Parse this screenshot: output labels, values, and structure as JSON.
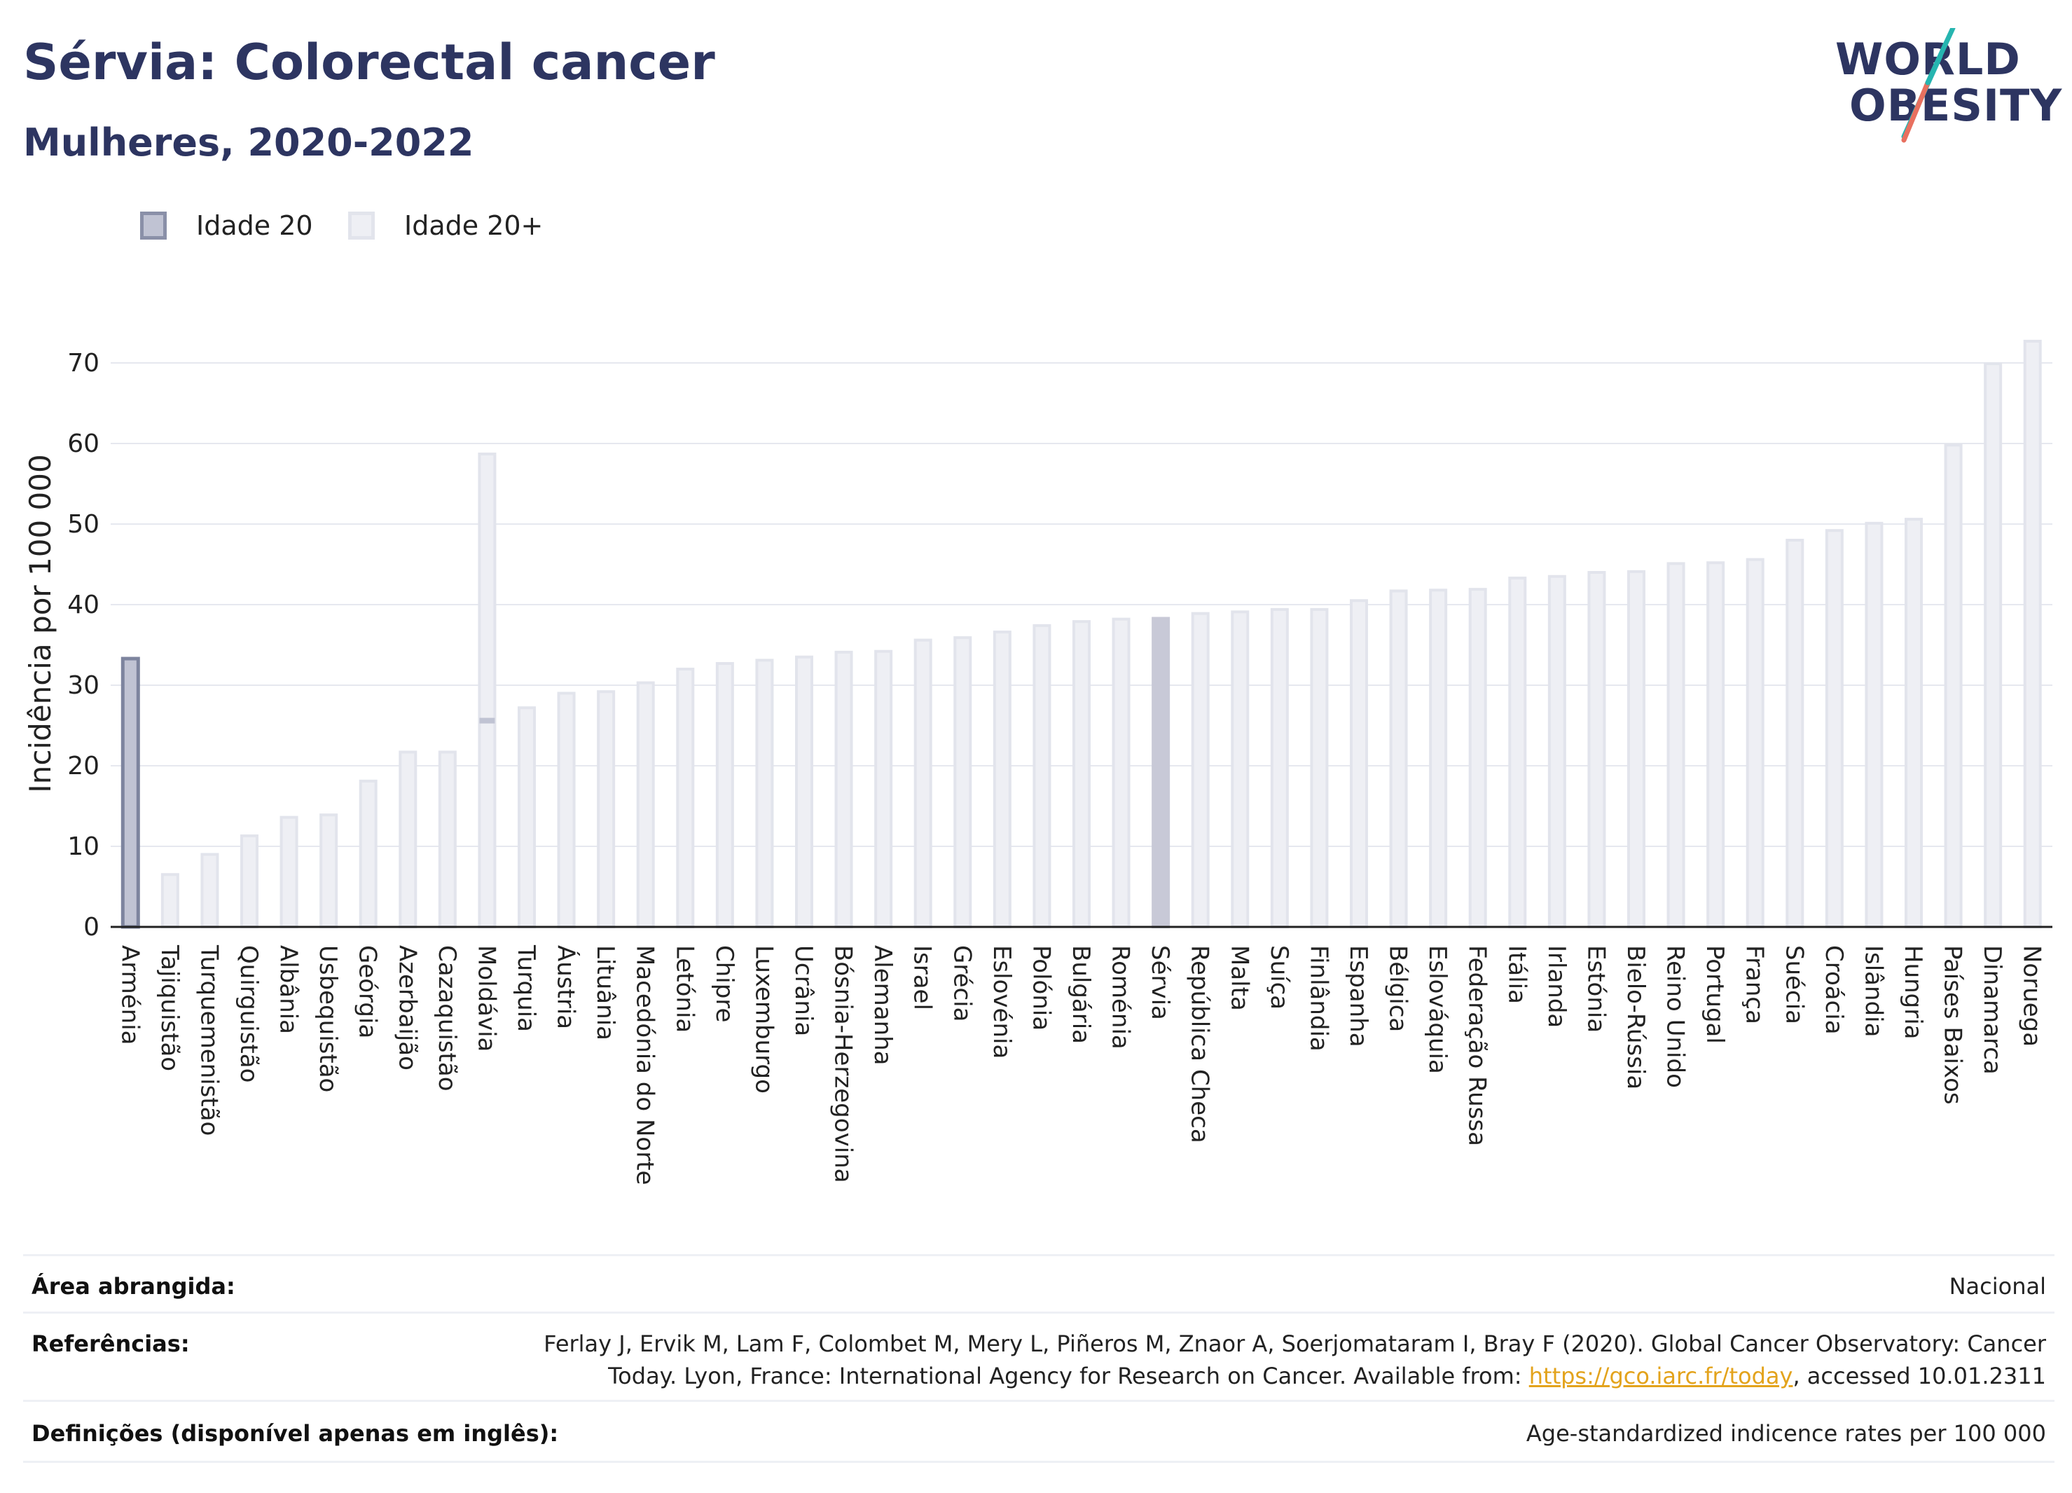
{
  "header": {
    "title": "Sérvia: Colorectal cancer",
    "subtitle": "Mulheres, 2020-2022",
    "logo_line1": "WORLD",
    "logo_line2": "OBESITY"
  },
  "legend": {
    "items": [
      {
        "label": "Idade 20",
        "fill": "#c0c3d3",
        "border": "#8a90a8"
      },
      {
        "label": "Idade 20+",
        "fill": "#eeeff4",
        "border": "#e2e4ec"
      }
    ]
  },
  "colors": {
    "highlight": "#c8c9d7",
    "bar_fill": "#eeeff4",
    "bar_border": "#e2e4ec",
    "age20_fill": "#c0c3d3",
    "age20_border": "#7d849e",
    "grid": "#e6e8ef",
    "axis": "#222222",
    "link": "#e3a31c"
  },
  "chart_data": {
    "type": "bar",
    "ylabel": "Incidência por 100 000",
    "xlabel": "",
    "ylim": [
      0,
      75
    ],
    "yticks": [
      0,
      10,
      20,
      30,
      40,
      50,
      60,
      70
    ],
    "grid": true,
    "legend_position": "top-left",
    "highlight_category": "Sérvia",
    "categories": [
      "Arménia",
      "Tajiquistão",
      "Turquemenistão",
      "Quirguistão",
      "Albânia",
      "Usbequistão",
      "Geórgia",
      "Azerbaijão",
      "Cazaquistão",
      "Moldávia",
      "Turquia",
      "Áustria",
      "Lituânia",
      "Macedónia do Norte",
      "Letónia",
      "Chipre",
      "Luxemburgo",
      "Ucrânia",
      "Bósnia-Herzegovina",
      "Alemanha",
      "Israel",
      "Grécia",
      "Eslovénia",
      "Polónia",
      "Bulgária",
      "Roménia",
      "Sérvia",
      "República Checa",
      "Malta",
      "Suíça",
      "Finlândia",
      "Espanha",
      "Bélgica",
      "Eslováquia",
      "Federação Russa",
      "Itália",
      "Irlanda",
      "Estónia",
      "Bielo-Rússia",
      "Reino Unido",
      "Portugal",
      "França",
      "Suécia",
      "Croácia",
      "Islândia",
      "Hungria",
      "Países Baixos",
      "Dinamarca",
      "Noruega"
    ],
    "series": [
      {
        "name": "Idade 20",
        "values": [
          33.3,
          null,
          null,
          null,
          null,
          null,
          null,
          null,
          null,
          25.6,
          null,
          null,
          null,
          null,
          null,
          null,
          null,
          null,
          null,
          null,
          null,
          null,
          null,
          null,
          null,
          null,
          null,
          null,
          null,
          null,
          null,
          null,
          null,
          null,
          null,
          null,
          null,
          null,
          null,
          null,
          null,
          null,
          null,
          null,
          null,
          null,
          null,
          null,
          null
        ]
      },
      {
        "name": "Idade 20+",
        "values": [
          33.3,
          6.5,
          9.0,
          11.3,
          13.6,
          13.9,
          18.1,
          21.7,
          21.7,
          58.7,
          27.2,
          29.0,
          29.2,
          30.3,
          32.0,
          32.7,
          33.1,
          33.5,
          34.1,
          34.2,
          35.6,
          35.9,
          36.6,
          37.4,
          37.9,
          38.2,
          38.3,
          38.9,
          39.1,
          39.4,
          39.4,
          40.5,
          41.7,
          41.8,
          41.9,
          43.3,
          43.5,
          44.0,
          44.1,
          45.1,
          45.2,
          45.6,
          48.0,
          49.2,
          50.1,
          50.6,
          59.8,
          69.9,
          72.7
        ]
      }
    ]
  },
  "info": {
    "area_label": "Área abrangida:",
    "area_value": "Nacional",
    "refs_label": "Referências:",
    "refs_line1": "Ferlay J, Ervik M, Lam F, Colombet M, Mery L, Piñeros M, Znaor A, Soerjomataram I, Bray F (2020). Global Cancer Observatory: Cancer",
    "refs_line2_pre": "Today. Lyon, France: International Agency for Research on Cancer. Available from: ",
    "refs_link": "https://gco.iarc.fr/today",
    "refs_line2_post": ", accessed 10.01.2311",
    "defs_label": "Definições (disponível apenas em inglês):",
    "defs_value": "Age-standardized indicence rates per 100 000"
  }
}
